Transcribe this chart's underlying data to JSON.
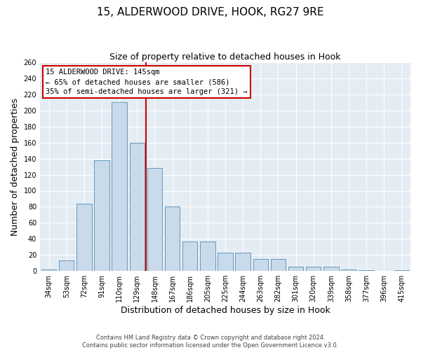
{
  "title": "15, ALDERWOOD DRIVE, HOOK, RG27 9RE",
  "subtitle": "Size of property relative to detached houses in Hook",
  "xlabel": "Distribution of detached houses by size in Hook",
  "ylabel": "Number of detached properties",
  "categories": [
    "34sqm",
    "53sqm",
    "72sqm",
    "91sqm",
    "110sqm",
    "129sqm",
    "148sqm",
    "167sqm",
    "186sqm",
    "205sqm",
    "225sqm",
    "244sqm",
    "263sqm",
    "282sqm",
    "301sqm",
    "320sqm",
    "339sqm",
    "358sqm",
    "377sqm",
    "396sqm",
    "415sqm"
  ],
  "values": [
    2,
    13,
    84,
    138,
    210,
    160,
    128,
    80,
    37,
    37,
    23,
    23,
    15,
    15,
    5,
    5,
    5,
    2,
    1,
    0,
    1
  ],
  "bar_color": "#c9daea",
  "bar_edge_color": "#6699bb",
  "bg_color": "#e4ecf4",
  "grid_color": "#ffffff",
  "vline_color": "#cc0000",
  "annotation_text": "15 ALDERWOOD DRIVE: 145sqm\n← 65% of detached houses are smaller (586)\n35% of semi-detached houses are larger (321) →",
  "annotation_box_color": "#ffffff",
  "annotation_box_edge_color": "#cc0000",
  "ylim": [
    0,
    260
  ],
  "yticks": [
    0,
    20,
    40,
    60,
    80,
    100,
    120,
    140,
    160,
    180,
    200,
    220,
    240,
    260
  ],
  "footer1": "Contains HM Land Registry data © Crown copyright and database right 2024.",
  "footer2": "Contains public sector information licensed under the Open Government Licence v3.0.",
  "title_fontsize": 11,
  "subtitle_fontsize": 9,
  "tick_fontsize": 7,
  "label_fontsize": 9,
  "footer_fontsize": 6
}
